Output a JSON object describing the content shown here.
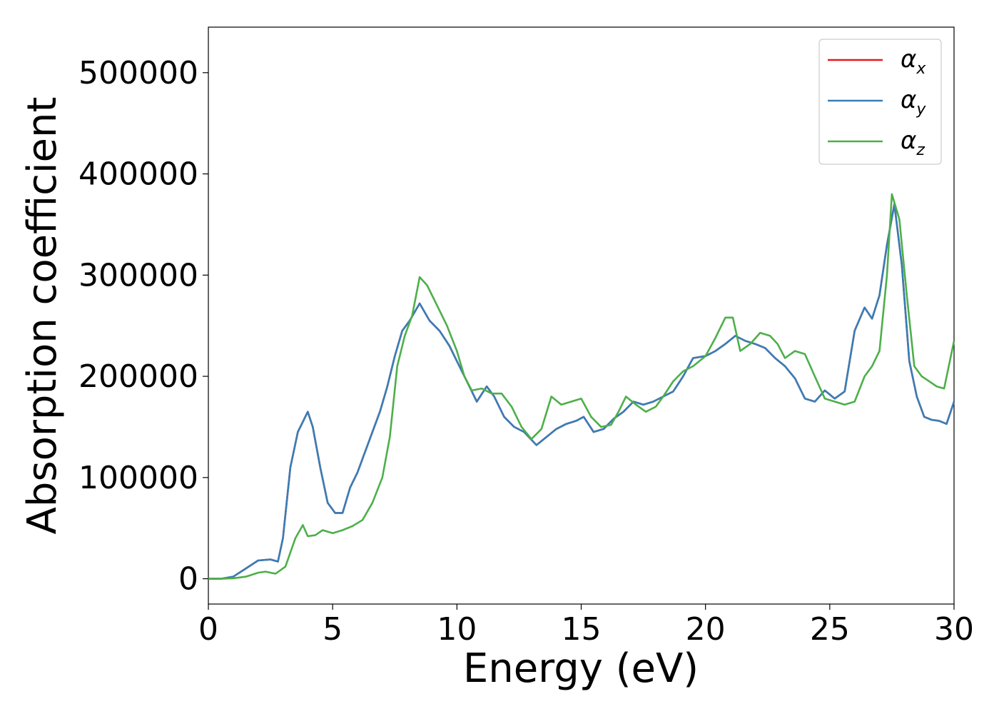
{
  "chart_data": {
    "type": "line",
    "title": "",
    "xlabel": "Energy (eV)",
    "ylabel": "Absorption coefficient",
    "xlim": [
      0,
      30
    ],
    "ylim": [
      -25000,
      545000
    ],
    "xticks": [
      0,
      5,
      10,
      15,
      20,
      25,
      30
    ],
    "yticks": [
      0,
      100000,
      200000,
      300000,
      400000,
      500000
    ],
    "xtick_labels": [
      "0",
      "5",
      "10",
      "15",
      "20",
      "25",
      "30"
    ],
    "ytick_labels": [
      "0",
      "100000",
      "200000",
      "300000",
      "400000",
      "500000"
    ],
    "grid": false,
    "legend_position": "top-right",
    "series": [
      {
        "name_main": "α",
        "name_sub": "x",
        "color": "#e41a1c",
        "x": [
          0,
          0.5,
          1.0,
          1.5,
          2.0,
          2.5,
          2.8,
          3.0,
          3.3,
          3.6,
          3.8,
          4.0,
          4.2,
          4.5,
          4.8,
          5.1,
          5.4,
          5.7,
          6.0,
          6.3,
          6.6,
          6.9,
          7.2,
          7.5,
          7.8,
          8.1,
          8.5,
          8.9,
          9.3,
          9.7,
          10.0,
          10.4,
          10.8,
          11.2,
          11.5,
          11.9,
          12.3,
          12.7,
          13.2,
          13.6,
          14.0,
          14.4,
          14.8,
          15.1,
          15.5,
          15.9,
          16.3,
          16.7,
          17.1,
          17.5,
          17.9,
          18.3,
          18.7,
          19.1,
          19.5,
          20.0,
          20.4,
          20.8,
          21.2,
          21.6,
          22.0,
          22.4,
          22.8,
          23.2,
          23.6,
          24.0,
          24.4,
          24.8,
          25.2,
          25.6,
          26.0,
          26.4,
          26.7,
          27.0,
          27.3,
          27.6,
          27.9,
          28.2,
          28.5,
          28.8,
          29.1,
          29.4,
          29.7,
          30.0
        ],
        "values": [
          0,
          0,
          2000,
          10000,
          18000,
          19000,
          17000,
          40000,
          110000,
          145000,
          155000,
          165000,
          150000,
          110000,
          75000,
          65000,
          65000,
          90000,
          105000,
          125000,
          145000,
          165000,
          190000,
          220000,
          245000,
          255000,
          272000,
          255000,
          245000,
          230000,
          215000,
          195000,
          175000,
          190000,
          180000,
          160000,
          150000,
          145000,
          132000,
          140000,
          148000,
          153000,
          156000,
          160000,
          145000,
          148000,
          158000,
          165000,
          175000,
          172000,
          175000,
          180000,
          185000,
          200000,
          218000,
          220000,
          225000,
          232000,
          240000,
          235000,
          232000,
          228000,
          218000,
          210000,
          198000,
          178000,
          175000,
          186000,
          178000,
          185000,
          245000,
          268000,
          257000,
          280000,
          330000,
          370000,
          310000,
          215000,
          180000,
          160000,
          157000,
          156000,
          153000,
          175000
        ]
      },
      {
        "name_main": "α",
        "name_sub": "y",
        "color": "#377eb8",
        "x": [
          0,
          0.5,
          1.0,
          1.5,
          2.0,
          2.5,
          2.8,
          3.0,
          3.3,
          3.6,
          3.8,
          4.0,
          4.2,
          4.5,
          4.8,
          5.1,
          5.4,
          5.7,
          6.0,
          6.3,
          6.6,
          6.9,
          7.2,
          7.5,
          7.8,
          8.1,
          8.5,
          8.9,
          9.3,
          9.7,
          10.0,
          10.4,
          10.8,
          11.2,
          11.5,
          11.9,
          12.3,
          12.7,
          13.2,
          13.6,
          14.0,
          14.4,
          14.8,
          15.1,
          15.5,
          15.9,
          16.3,
          16.7,
          17.1,
          17.5,
          17.9,
          18.3,
          18.7,
          19.1,
          19.5,
          20.0,
          20.4,
          20.8,
          21.2,
          21.6,
          22.0,
          22.4,
          22.8,
          23.2,
          23.6,
          24.0,
          24.4,
          24.8,
          25.2,
          25.6,
          26.0,
          26.4,
          26.7,
          27.0,
          27.3,
          27.6,
          27.9,
          28.2,
          28.5,
          28.8,
          29.1,
          29.4,
          29.7,
          30.0
        ],
        "values": [
          0,
          0,
          2000,
          10000,
          18000,
          19000,
          17000,
          40000,
          110000,
          145000,
          155000,
          165000,
          150000,
          110000,
          75000,
          65000,
          65000,
          90000,
          105000,
          125000,
          145000,
          165000,
          190000,
          220000,
          245000,
          255000,
          272000,
          255000,
          245000,
          230000,
          215000,
          195000,
          175000,
          190000,
          180000,
          160000,
          150000,
          145000,
          132000,
          140000,
          148000,
          153000,
          156000,
          160000,
          145000,
          148000,
          158000,
          165000,
          175000,
          172000,
          175000,
          180000,
          185000,
          200000,
          218000,
          220000,
          225000,
          232000,
          240000,
          235000,
          232000,
          228000,
          218000,
          210000,
          198000,
          178000,
          175000,
          186000,
          178000,
          185000,
          245000,
          268000,
          257000,
          280000,
          330000,
          370000,
          310000,
          215000,
          180000,
          160000,
          157000,
          156000,
          153000,
          175000
        ]
      },
      {
        "name_main": "α",
        "name_sub": "z",
        "color": "#4daf4a",
        "x": [
          0,
          0.5,
          1.0,
          1.5,
          2.0,
          2.3,
          2.7,
          3.1,
          3.5,
          3.8,
          4.0,
          4.3,
          4.6,
          5.0,
          5.4,
          5.8,
          6.2,
          6.6,
          7.0,
          7.3,
          7.6,
          7.9,
          8.2,
          8.5,
          8.8,
          9.2,
          9.6,
          10.0,
          10.3,
          10.6,
          11.0,
          11.4,
          11.8,
          12.2,
          12.6,
          13.0,
          13.4,
          13.8,
          14.2,
          14.6,
          15.0,
          15.4,
          15.8,
          16.2,
          16.5,
          16.8,
          17.2,
          17.6,
          18.0,
          18.3,
          18.7,
          19.1,
          19.5,
          20.0,
          20.4,
          20.8,
          21.1,
          21.4,
          21.8,
          22.2,
          22.6,
          22.9,
          23.2,
          23.6,
          24.0,
          24.4,
          24.8,
          25.2,
          25.6,
          26.0,
          26.4,
          26.7,
          27.0,
          27.3,
          27.5,
          27.8,
          28.1,
          28.4,
          28.7,
          29.0,
          29.3,
          29.6,
          30.0
        ],
        "values": [
          0,
          0,
          500,
          2000,
          6000,
          7000,
          5000,
          12000,
          40000,
          53000,
          42000,
          43000,
          48000,
          45000,
          48000,
          52000,
          58000,
          75000,
          100000,
          140000,
          210000,
          240000,
          260000,
          298000,
          290000,
          270000,
          250000,
          225000,
          200000,
          186000,
          188000,
          183000,
          183000,
          170000,
          150000,
          138000,
          148000,
          180000,
          172000,
          175000,
          178000,
          160000,
          150000,
          152000,
          165000,
          180000,
          172000,
          165000,
          170000,
          180000,
          195000,
          205000,
          210000,
          220000,
          238000,
          258000,
          258000,
          225000,
          232000,
          243000,
          240000,
          232000,
          218000,
          225000,
          222000,
          200000,
          178000,
          175000,
          172000,
          175000,
          200000,
          210000,
          225000,
          300000,
          380000,
          355000,
          280000,
          210000,
          200000,
          195000,
          190000,
          188000,
          235000
        ]
      }
    ]
  }
}
